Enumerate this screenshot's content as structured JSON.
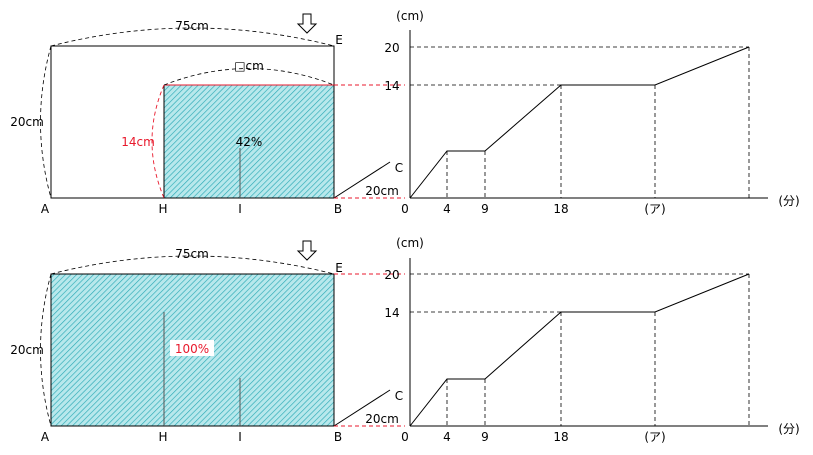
{
  "panels": [
    {
      "top_label": "75cm",
      "inner_label": "□cm",
      "height_label": "20cm",
      "water_height_label": "14cm",
      "percent_label": "42%",
      "percent_color": "#000000",
      "c_label": "20cm",
      "points": {
        "A": "A",
        "H": "H",
        "I": "I",
        "B": "B",
        "E": "E",
        "C": "C"
      },
      "graph": {
        "y_unit": "(cm)",
        "x_unit": "(分)",
        "y_ticks": [
          "20",
          "14"
        ],
        "x_ticks": [
          "0",
          "4",
          "9",
          "18",
          "(ア)"
        ]
      }
    },
    {
      "top_label": "75cm",
      "height_label": "20cm",
      "percent_label": "100%",
      "percent_color": "#e8192c",
      "c_label": "20cm",
      "points": {
        "A": "A",
        "H": "H",
        "I": "I",
        "B": "B",
        "E": "E",
        "C": "C"
      },
      "graph": {
        "y_unit": "(cm)",
        "x_unit": "(分)",
        "y_ticks": [
          "20",
          "14"
        ],
        "x_ticks": [
          "0",
          "4",
          "9",
          "18",
          "(ア)"
        ]
      }
    }
  ],
  "colors": {
    "water_fill": "#b8e8ec",
    "hatch": "#2aa9b5",
    "highlight": "#e8192c"
  }
}
